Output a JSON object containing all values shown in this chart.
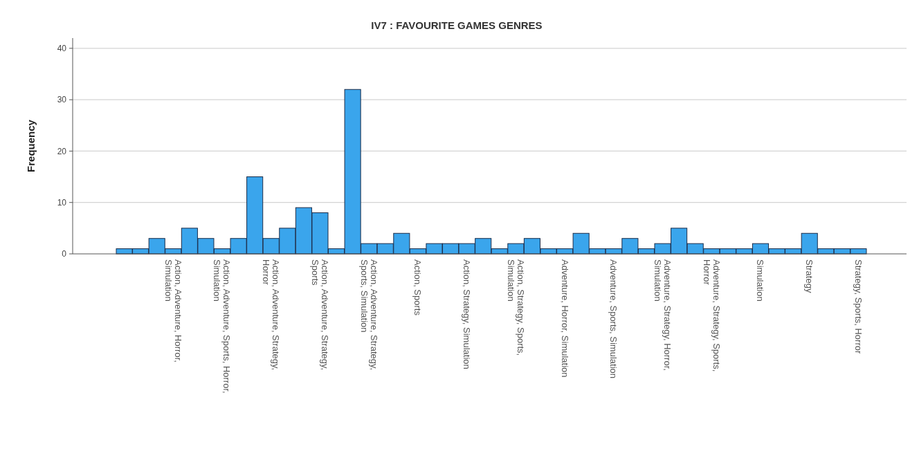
{
  "chart_data": {
    "type": "bar",
    "title": "IV7 : FAVOURITE GAMES GENRES",
    "ylabel": "Frequency",
    "categories": [
      null,
      null,
      null,
      "Action, Adventure, Horror, Simulation",
      null,
      null,
      "Action, Adventure, Sports, Horror, Simulation",
      null,
      null,
      "Action, Adventure, Strategy, Horror",
      null,
      null,
      "Action, Adventure, Strategy, Sports",
      null,
      null,
      "Action, Adventure, Strategy, Sports, Simulation",
      null,
      null,
      "Action, Sports",
      null,
      null,
      "Action, Strategy, Simulation",
      null,
      null,
      "Action, Strategy, Sports, Simulation",
      null,
      null,
      "Adventure, Horror, Simulation",
      null,
      null,
      "Adventure, Sports, Simulation",
      null,
      null,
      "Adventure, Strategy, Horror, Simulation",
      null,
      null,
      "Adventure, Strategy, Sports, Horror",
      null,
      null,
      "Simulation",
      null,
      null,
      "Strategy",
      null,
      null,
      "Strategy, Sports, Horror"
    ],
    "values": [
      1,
      1,
      3,
      1,
      5,
      3,
      1,
      3,
      15,
      3,
      5,
      9,
      8,
      1,
      32,
      2,
      2,
      4,
      1,
      2,
      2,
      2,
      3,
      1,
      2,
      3,
      1,
      1,
      4,
      1,
      1,
      3,
      1,
      2,
      5,
      2,
      1,
      1,
      1,
      2,
      1,
      1,
      4,
      1,
      1,
      1
    ],
    "color": "#3aa5ec",
    "ylim": [
      0,
      42
    ],
    "yticks": [
      0,
      10,
      20,
      30,
      40
    ],
    "grid": "y"
  }
}
